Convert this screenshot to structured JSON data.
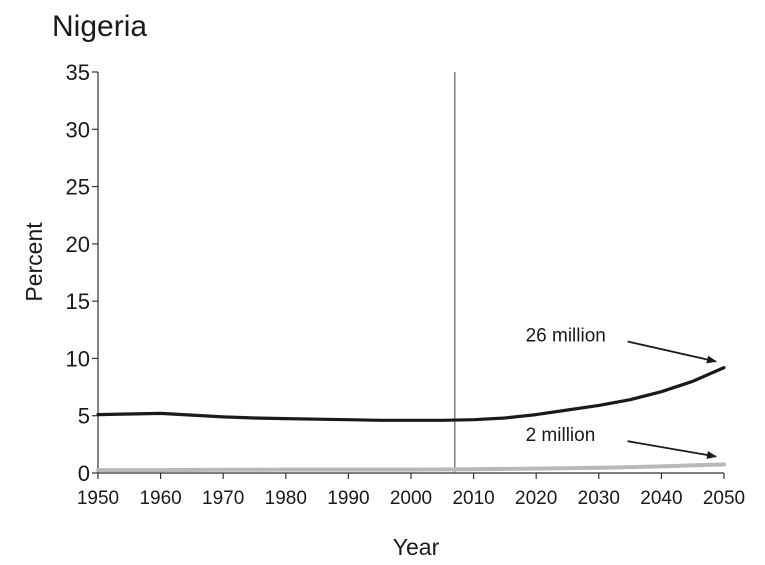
{
  "chart_data": {
    "type": "line",
    "title": "Nigeria",
    "xlabel": "Year",
    "ylabel": "Percent",
    "xlim": [
      1950,
      2050
    ],
    "ylim": [
      0,
      35
    ],
    "x_ticks": [
      "1950",
      "1960",
      "1970",
      "1980",
      "1990",
      "2000",
      "2010",
      "2020",
      "2030",
      "2040",
      "2050"
    ],
    "y_ticks": [
      "0",
      "5",
      "10",
      "15",
      "20",
      "25",
      "30",
      "35"
    ],
    "reference_line_x": 2007,
    "grid": false,
    "legend": "none",
    "series": [
      {
        "color": "#1a1a1a",
        "x": [
          1950,
          1955,
          1960,
          1965,
          1970,
          1975,
          1980,
          1985,
          1990,
          1995,
          2000,
          2005,
          2010,
          2015,
          2020,
          2025,
          2030,
          2035,
          2040,
          2045,
          2050
        ],
        "y": [
          5.1,
          5.15,
          5.2,
          5.05,
          4.9,
          4.8,
          4.75,
          4.7,
          4.65,
          4.6,
          4.6,
          4.6,
          4.65,
          4.8,
          5.1,
          5.5,
          5.9,
          6.4,
          7.1,
          8.0,
          9.2
        ]
      },
      {
        "color": "#b8b8b8",
        "x": [
          1950,
          1960,
          1970,
          1980,
          1990,
          2000,
          2010,
          2020,
          2030,
          2040,
          2050
        ],
        "y": [
          0.25,
          0.25,
          0.28,
          0.3,
          0.3,
          0.3,
          0.32,
          0.38,
          0.45,
          0.58,
          0.75
        ]
      }
    ],
    "annotations": [
      {
        "text": "26 million",
        "x": 2033,
        "y": 12.0,
        "arrow_to": [
          2050,
          9.3
        ],
        "series": 0
      },
      {
        "text": "2 million",
        "x": 2033,
        "y": 3.3,
        "arrow_to": [
          2050,
          1.0
        ],
        "series": 1
      }
    ]
  }
}
